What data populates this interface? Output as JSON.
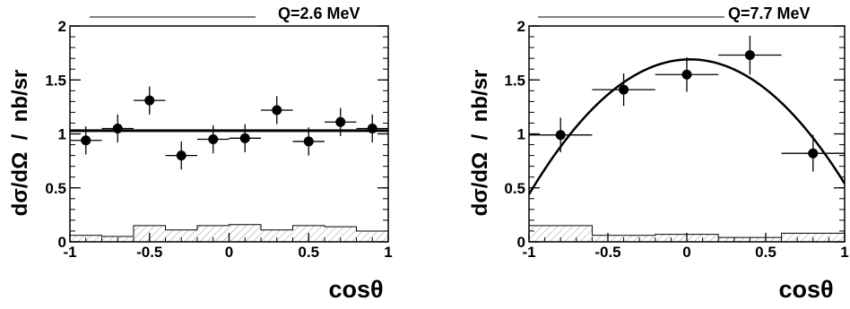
{
  "chart_data": [
    {
      "type": "scatter",
      "title": "Q=2.6 MeV",
      "xlabel": "cosθ",
      "ylabel": "dσ/dΩ  /  nb/sr",
      "xlim": [
        -1,
        1
      ],
      "ylim": [
        0,
        2
      ],
      "xticks": [
        -1,
        -0.5,
        0,
        0.5,
        1
      ],
      "yticks": [
        0,
        0.5,
        1,
        1.5,
        2
      ],
      "xtick_labels": [
        "-1",
        "-0.5",
        "0",
        "0.5",
        "1"
      ],
      "ytick_labels": [
        "0",
        "0.5",
        "1",
        "1.5",
        "2"
      ],
      "points": [
        {
          "x": -0.9,
          "y": 0.94,
          "xerr": 0.1,
          "yerr": 0.13
        },
        {
          "x": -0.7,
          "y": 1.05,
          "xerr": 0.1,
          "yerr": 0.13
        },
        {
          "x": -0.5,
          "y": 1.31,
          "xerr": 0.1,
          "yerr": 0.13
        },
        {
          "x": -0.3,
          "y": 0.8,
          "xerr": 0.1,
          "yerr": 0.13
        },
        {
          "x": -0.1,
          "y": 0.95,
          "xerr": 0.1,
          "yerr": 0.13
        },
        {
          "x": 0.1,
          "y": 0.96,
          "xerr": 0.1,
          "yerr": 0.13
        },
        {
          "x": 0.3,
          "y": 1.22,
          "xerr": 0.1,
          "yerr": 0.13
        },
        {
          "x": 0.5,
          "y": 0.93,
          "xerr": 0.1,
          "yerr": 0.13
        },
        {
          "x": 0.7,
          "y": 1.11,
          "xerr": 0.1,
          "yerr": 0.13
        },
        {
          "x": 0.9,
          "y": 1.05,
          "xerr": 0.1,
          "yerr": 0.13
        }
      ],
      "fit": {
        "kind": "constant",
        "value": 1.03
      },
      "systematics": {
        "edges": [
          -1,
          -0.8,
          -0.6,
          -0.4,
          -0.2,
          0,
          0.2,
          0.4,
          0.6,
          0.8,
          1
        ],
        "values": [
          0.06,
          0.05,
          0.15,
          0.11,
          0.15,
          0.16,
          0.11,
          0.15,
          0.14,
          0.1
        ]
      }
    },
    {
      "type": "scatter",
      "title": "Q=7.7 MeV",
      "xlabel": "cosθ",
      "ylabel": "dσ/dΩ  /  nb/sr",
      "xlim": [
        -1,
        1
      ],
      "ylim": [
        0,
        2
      ],
      "xticks": [
        -1,
        -0.5,
        0,
        0.5,
        1
      ],
      "yticks": [
        0,
        0.5,
        1,
        1.5,
        2
      ],
      "xtick_labels": [
        "-1",
        "-0.5",
        "0",
        "0.5",
        "1"
      ],
      "ytick_labels": [
        "0",
        "0.5",
        "1",
        "1.5",
        "2"
      ],
      "points": [
        {
          "x": -0.8,
          "y": 0.99,
          "xerr": 0.2,
          "yerr": 0.16
        },
        {
          "x": -0.4,
          "y": 1.41,
          "xerr": 0.2,
          "yerr": 0.15
        },
        {
          "x": 0.0,
          "y": 1.55,
          "xerr": 0.2,
          "yerr": 0.16
        },
        {
          "x": 0.4,
          "y": 1.73,
          "xerr": 0.2,
          "yerr": 0.18
        },
        {
          "x": 0.8,
          "y": 0.82,
          "xerr": 0.2,
          "yerr": 0.17
        }
      ],
      "fit": {
        "kind": "quadratic",
        "a": 1.69,
        "b": 0.05,
        "c": -1.2
      },
      "systematics": {
        "edges": [
          -1,
          -0.6,
          -0.2,
          0.2,
          0.6,
          1
        ],
        "values": [
          0.15,
          0.06,
          0.07,
          0.04,
          0.08
        ]
      }
    }
  ]
}
